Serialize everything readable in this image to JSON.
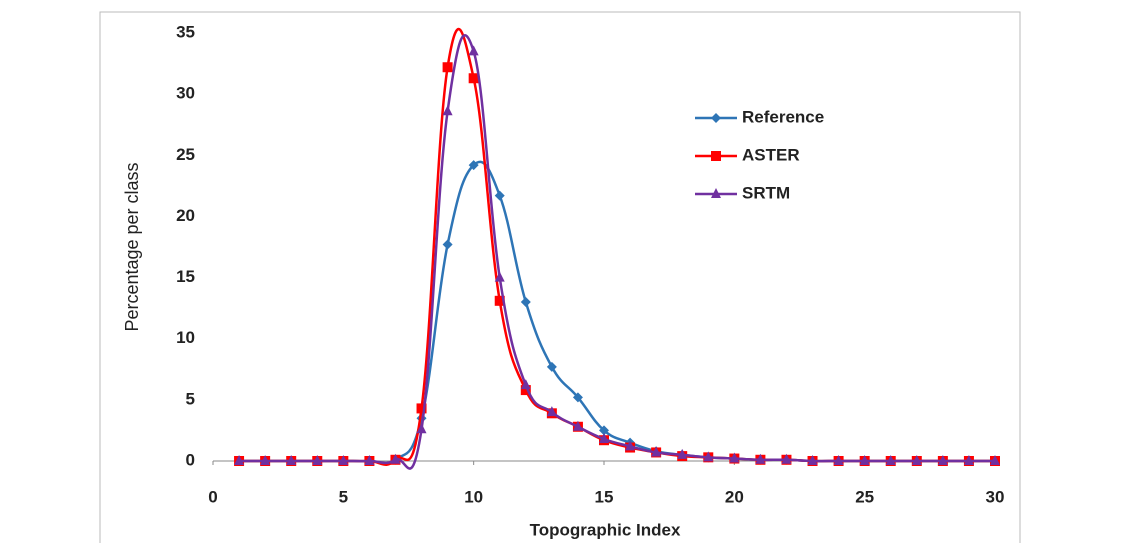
{
  "chart_data": {
    "type": "line",
    "x_label": "Topographic Index",
    "y_label": "Percentage per class",
    "x": [
      1,
      2,
      3,
      4,
      5,
      6,
      7,
      8,
      9,
      10,
      11,
      12,
      13,
      14,
      15,
      16,
      17,
      18,
      19,
      20,
      21,
      22,
      23,
      24,
      25,
      26,
      27,
      28,
      29,
      30
    ],
    "series": [
      {
        "name": "Reference",
        "color": "#2e75b6",
        "marker": "diamond",
        "values": [
          0,
          0,
          0,
          0,
          0,
          0,
          0.1,
          3.5,
          17.7,
          24.2,
          21.7,
          13,
          7.7,
          5.2,
          2.5,
          1.5,
          0.8,
          0.5,
          0.3,
          0.2,
          0.1,
          0.1,
          0,
          0,
          0,
          0,
          0,
          0,
          0,
          0
        ]
      },
      {
        "name": "ASTER",
        "color": "#ff0000",
        "marker": "square",
        "values": [
          0,
          0,
          0,
          0,
          0,
          0,
          0.1,
          4.3,
          32.2,
          31.3,
          13.1,
          5.8,
          3.9,
          2.8,
          1.7,
          1.1,
          0.7,
          0.4,
          0.3,
          0.2,
          0.1,
          0.1,
          0,
          0,
          0,
          0,
          0,
          0,
          0,
          0
        ]
      },
      {
        "name": "SRTM",
        "color": "#7030a0",
        "marker": "triangle",
        "values": [
          0,
          0,
          0,
          0,
          0,
          0,
          0.1,
          2.6,
          28.6,
          33.5,
          15,
          6.2,
          4,
          2.8,
          1.8,
          1.2,
          0.7,
          0.5,
          0.3,
          0.2,
          0.1,
          0.1,
          0,
          0,
          0,
          0,
          0,
          0,
          0,
          0
        ]
      }
    ],
    "xlim": [
      0,
      30
    ],
    "xticks": [
      0,
      5,
      10,
      15,
      20,
      25,
      30
    ],
    "ylim": [
      0,
      35
    ],
    "yticks": [
      0,
      5,
      10,
      15,
      20,
      25,
      30,
      35
    ],
    "legend": "upper right"
  }
}
